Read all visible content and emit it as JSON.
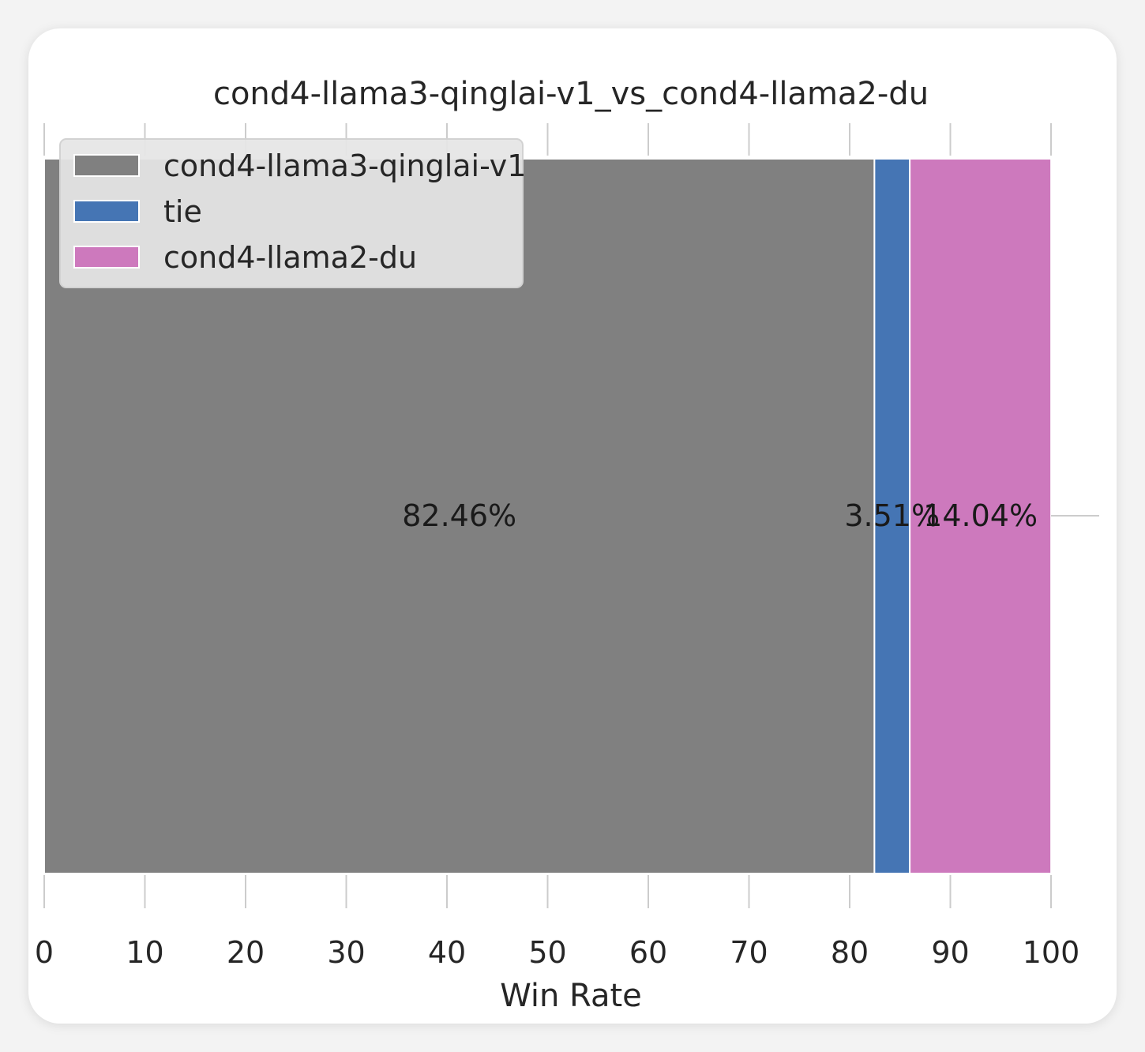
{
  "chart_data": {
    "type": "bar",
    "orientation": "horizontal",
    "stacked": true,
    "title": "cond4-llama3-qinglai-v1_vs_cond4-llama2-du",
    "xlabel": "Win Rate",
    "ylabel": "",
    "xlim": [
      0,
      100
    ],
    "xticks": [
      "0",
      "10",
      "20",
      "30",
      "40",
      "50",
      "60",
      "70",
      "80",
      "90",
      "100"
    ],
    "grid": false,
    "legend_position": "top-left",
    "series": [
      {
        "name": "cond4-llama3-qinglai-v1",
        "value": 82.46,
        "label": "82.46%",
        "color": "#808080"
      },
      {
        "name": "tie",
        "value": 3.51,
        "label": "3.51%",
        "color": "#4575b4"
      },
      {
        "name": "cond4-llama2-du",
        "value": 14.04,
        "label": "14.04%",
        "color": "#cd79bd"
      }
    ]
  }
}
